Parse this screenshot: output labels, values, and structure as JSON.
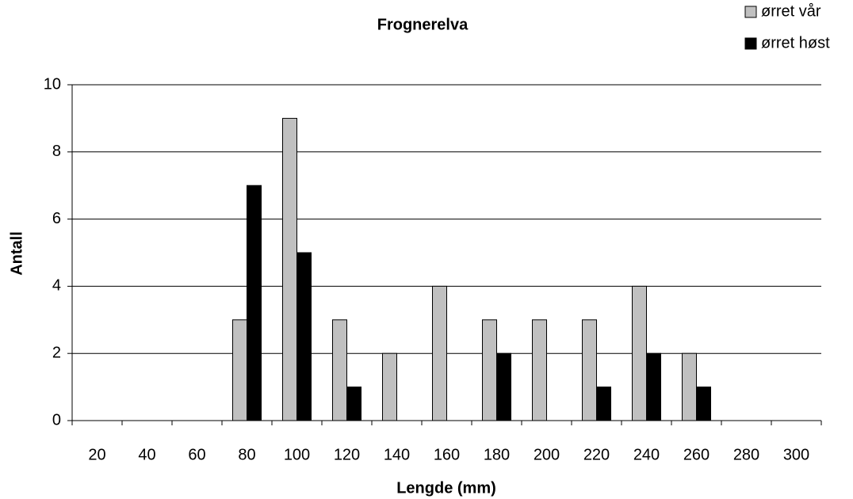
{
  "chart_data": {
    "type": "bar",
    "title": "Frognerelva",
    "x_label": "Lengde (mm)",
    "y_label": "Antall",
    "categories": [
      "20",
      "40",
      "60",
      "80",
      "100",
      "120",
      "140",
      "160",
      "180",
      "200",
      "220",
      "240",
      "260",
      "280",
      "300"
    ],
    "series": [
      {
        "name": "ørret vår",
        "color": "#c0c0c0",
        "values": [
          0,
          0,
          0,
          3,
          9,
          3,
          2,
          4,
          3,
          3,
          3,
          4,
          2,
          0,
          0
        ]
      },
      {
        "name": "ørret høst",
        "color": "#000000",
        "values": [
          0,
          0,
          0,
          7,
          5,
          1,
          0,
          0,
          2,
          0,
          1,
          2,
          1,
          0,
          0
        ]
      }
    ],
    "ylim": [
      0,
      10
    ],
    "yticks": [
      0,
      2,
      4,
      6,
      8,
      10
    ],
    "grid": true,
    "legend": "top-right"
  }
}
